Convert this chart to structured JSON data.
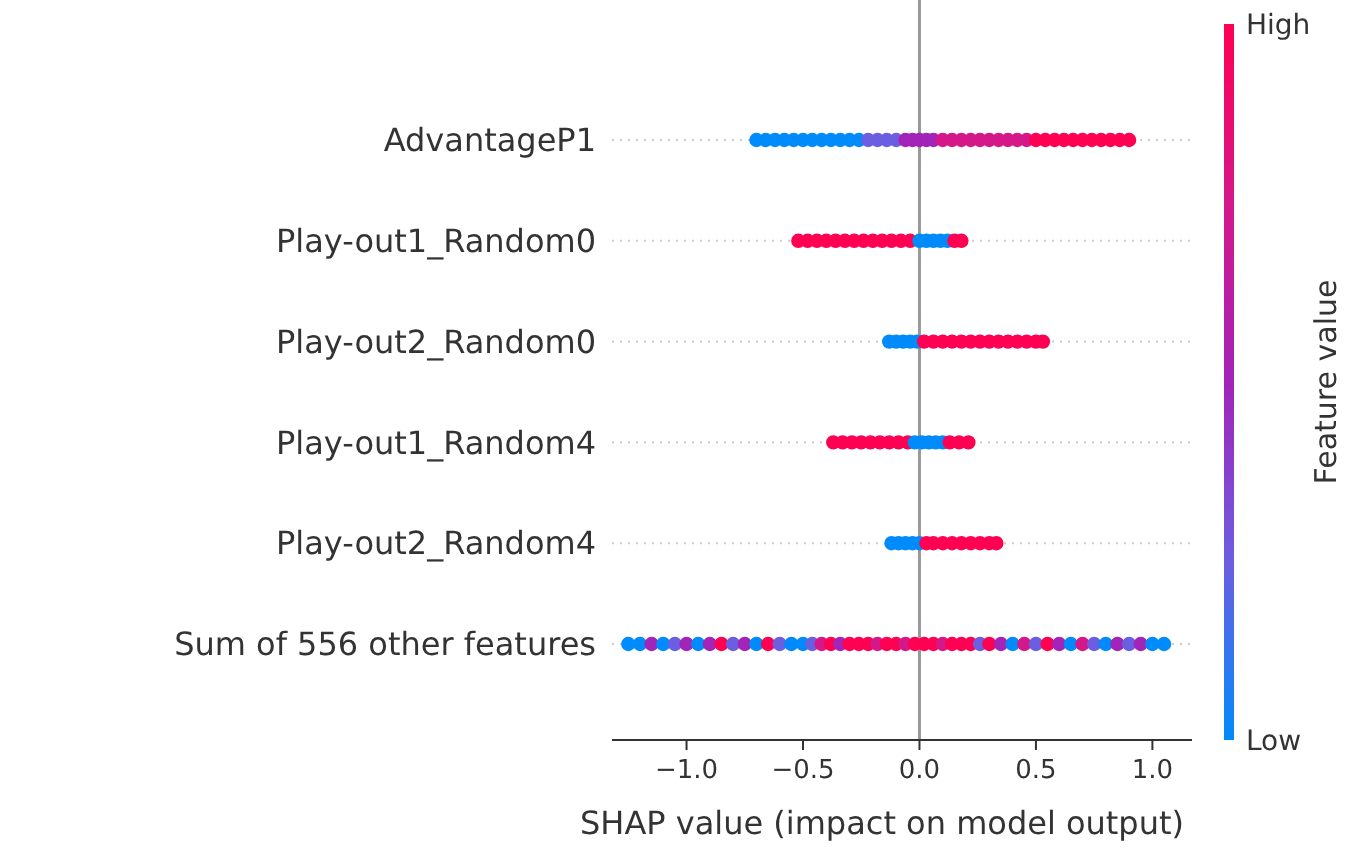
{
  "chart_data": {
    "type": "scatter",
    "orientation": "horizontal",
    "xlabel": "SHAP value (impact on model output)",
    "clabel": "Feature value",
    "categories": [
      "AdvantageP1",
      "Play-out1_Random0",
      "Play-out2_Random0",
      "Play-out1_Random4",
      "Play-out2_Random4",
      "Sum of 556 other features"
    ],
    "xlim": [
      -1.32,
      1.17
    ],
    "xticks": [
      {
        "value": -1,
        "label": "−1.0"
      },
      {
        "value": -0.5,
        "label": "−0.5"
      },
      {
        "value": 0,
        "label": "0.0"
      },
      {
        "value": 0.5,
        "label": "0.5"
      },
      {
        "value": 1,
        "label": "1.0"
      }
    ],
    "clim": [
      0,
      1
    ],
    "cticks": [
      {
        "value": 0,
        "label": "Low"
      },
      {
        "value": 1,
        "label": "High"
      }
    ],
    "grid": "y",
    "ref_lines": [
      {
        "axis": "x",
        "value": 0,
        "color": "#999999"
      }
    ],
    "series": [
      {
        "x": [
          "AdvantageP1",
          "AdvantageP1",
          "AdvantageP1",
          "AdvantageP1",
          "AdvantageP1",
          "AdvantageP1",
          "AdvantageP1",
          "AdvantageP1",
          "AdvantageP1",
          "AdvantageP1",
          "AdvantageP1",
          "AdvantageP1",
          "AdvantageP1",
          "AdvantageP1",
          "AdvantageP1",
          "AdvantageP1",
          "AdvantageP1",
          "AdvantageP1",
          "AdvantageP1",
          "AdvantageP1",
          "AdvantageP1",
          "AdvantageP1",
          "AdvantageP1",
          "AdvantageP1",
          "AdvantageP1",
          "AdvantageP1",
          "AdvantageP1",
          "AdvantageP1",
          "AdvantageP1",
          "AdvantageP1",
          "AdvantageP1",
          "AdvantageP1",
          "AdvantageP1",
          "AdvantageP1",
          "AdvantageP1",
          "AdvantageP1",
          "AdvantageP1",
          "AdvantageP1",
          "AdvantageP1",
          "AdvantageP1",
          "AdvantageP1",
          "AdvantageP1"
        ],
        "values": [
          -0.7,
          -0.66,
          -0.62,
          -0.58,
          -0.54,
          -0.5,
          -0.46,
          -0.42,
          -0.38,
          -0.34,
          -0.3,
          -0.26,
          -0.22,
          -0.18,
          -0.14,
          -0.1,
          -0.06,
          -0.03,
          0,
          0.03,
          0.06,
          0.1,
          0.14,
          0.18,
          0.22,
          0.26,
          0.3,
          0.34,
          0.38,
          0.42,
          0.46,
          0.5,
          0.54,
          0.58,
          0.62,
          0.66,
          0.7,
          0.74,
          0.78,
          0.82,
          0.86,
          0.9
        ],
        "cvalues": [
          0,
          0,
          0,
          0,
          0,
          0,
          0,
          0,
          0,
          0,
          0,
          0,
          0.25,
          0.25,
          0.25,
          0.25,
          0.5,
          0.5,
          0.5,
          0.5,
          0.5,
          0.75,
          0.75,
          0.75,
          0.75,
          0.75,
          0.75,
          0.75,
          0.75,
          0.75,
          0.75,
          1,
          1,
          1,
          1,
          1,
          1,
          1,
          1,
          1,
          1,
          1
        ],
        "colors": [
          "#008bfb",
          "#008bfb",
          "#008bfb",
          "#008bfb",
          "#008bfb",
          "#008bfb",
          "#008bfb",
          "#008bfb",
          "#008bfb",
          "#008bfb",
          "#008bfb",
          "#008bfb",
          "#6c5ee0",
          "#6c5ee0",
          "#6c5ee0",
          "#6c5ee0",
          "#a224b8",
          "#a224b8",
          "#a224b8",
          "#a224b8",
          "#a224b8",
          "#d4188a",
          "#d4188a",
          "#d4188a",
          "#d4188a",
          "#d4188a",
          "#d4188a",
          "#d4188a",
          "#d4188a",
          "#d4188a",
          "#d4188a",
          "#ff0052",
          "#ff0052",
          "#ff0052",
          "#ff0052",
          "#ff0052",
          "#ff0052",
          "#ff0052",
          "#ff0052",
          "#ff0052",
          "#ff0052",
          "#ff0052"
        ]
      },
      {
        "x": [
          "Play-out1_Random0",
          "Play-out1_Random0",
          "Play-out1_Random0",
          "Play-out1_Random0",
          "Play-out1_Random0",
          "Play-out1_Random0",
          "Play-out1_Random0",
          "Play-out1_Random0",
          "Play-out1_Random0",
          "Play-out1_Random0",
          "Play-out1_Random0",
          "Play-out1_Random0",
          "Play-out1_Random0",
          "Play-out1_Random0",
          "Play-out1_Random0",
          "Play-out1_Random0",
          "Play-out1_Random0",
          "Play-out1_Random0",
          "Play-out1_Random0",
          "Play-out1_Random0"
        ],
        "values": [
          -0.52,
          -0.48,
          -0.44,
          -0.4,
          -0.36,
          -0.32,
          -0.28,
          -0.24,
          -0.2,
          -0.16,
          -0.12,
          -0.08,
          -0.04,
          0,
          0.03,
          0.06,
          0.09,
          0.12,
          0.15,
          0.18
        ],
        "cvalues": [
          1,
          1,
          1,
          1,
          1,
          1,
          1,
          1,
          1,
          1,
          1,
          1,
          1,
          0,
          0,
          0,
          0,
          0,
          1,
          1
        ],
        "colors": [
          "#ff0052",
          "#ff0052",
          "#ff0052",
          "#ff0052",
          "#ff0052",
          "#ff0052",
          "#ff0052",
          "#ff0052",
          "#ff0052",
          "#ff0052",
          "#ff0052",
          "#ff0052",
          "#ff0052",
          "#008bfb",
          "#008bfb",
          "#008bfb",
          "#008bfb",
          "#008bfb",
          "#ff0052",
          "#ff0052"
        ]
      },
      {
        "x": [
          "Play-out2_Random0",
          "Play-out2_Random0",
          "Play-out2_Random0",
          "Play-out2_Random0",
          "Play-out2_Random0",
          "Play-out2_Random0",
          "Play-out2_Random0",
          "Play-out2_Random0",
          "Play-out2_Random0",
          "Play-out2_Random0",
          "Play-out2_Random0",
          "Play-out2_Random0",
          "Play-out2_Random0",
          "Play-out2_Random0",
          "Play-out2_Random0",
          "Play-out2_Random0",
          "Play-out2_Random0",
          "Play-out2_Random0",
          "Play-out2_Random0"
        ],
        "values": [
          -0.13,
          -0.1,
          -0.07,
          -0.04,
          -0.01,
          0.02,
          0.06,
          0.1,
          0.14,
          0.18,
          0.22,
          0.26,
          0.3,
          0.34,
          0.38,
          0.42,
          0.46,
          0.5,
          0.53
        ],
        "cvalues": [
          0,
          0,
          0,
          0,
          0,
          1,
          1,
          1,
          1,
          1,
          1,
          1,
          1,
          1,
          1,
          1,
          1,
          1,
          1
        ],
        "colors": [
          "#008bfb",
          "#008bfb",
          "#008bfb",
          "#008bfb",
          "#008bfb",
          "#ff0052",
          "#ff0052",
          "#ff0052",
          "#ff0052",
          "#ff0052",
          "#ff0052",
          "#ff0052",
          "#ff0052",
          "#ff0052",
          "#ff0052",
          "#ff0052",
          "#ff0052",
          "#ff0052",
          "#ff0052"
        ]
      },
      {
        "x": [
          "Play-out1_Random4",
          "Play-out1_Random4",
          "Play-out1_Random4",
          "Play-out1_Random4",
          "Play-out1_Random4",
          "Play-out1_Random4",
          "Play-out1_Random4",
          "Play-out1_Random4",
          "Play-out1_Random4",
          "Play-out1_Random4",
          "Play-out1_Random4",
          "Play-out1_Random4",
          "Play-out1_Random4",
          "Play-out1_Random4",
          "Play-out1_Random4",
          "Play-out1_Random4",
          "Play-out1_Random4"
        ],
        "values": [
          -0.37,
          -0.33,
          -0.29,
          -0.25,
          -0.21,
          -0.17,
          -0.13,
          -0.09,
          -0.05,
          -0.02,
          0.01,
          0.04,
          0.07,
          0.1,
          0.13,
          0.17,
          0.21
        ],
        "cvalues": [
          1,
          1,
          1,
          1,
          1,
          1,
          1,
          1,
          1,
          0,
          0,
          0,
          0,
          0,
          1,
          1,
          1
        ],
        "colors": [
          "#ff0052",
          "#ff0052",
          "#ff0052",
          "#ff0052",
          "#ff0052",
          "#ff0052",
          "#ff0052",
          "#ff0052",
          "#ff0052",
          "#008bfb",
          "#008bfb",
          "#008bfb",
          "#008bfb",
          "#008bfb",
          "#ff0052",
          "#ff0052",
          "#ff0052"
        ]
      },
      {
        "x": [
          "Play-out2_Random4",
          "Play-out2_Random4",
          "Play-out2_Random4",
          "Play-out2_Random4",
          "Play-out2_Random4",
          "Play-out2_Random4",
          "Play-out2_Random4",
          "Play-out2_Random4",
          "Play-out2_Random4",
          "Play-out2_Random4",
          "Play-out2_Random4",
          "Play-out2_Random4",
          "Play-out2_Random4",
          "Play-out2_Random4"
        ],
        "values": [
          -0.12,
          -0.09,
          -0.06,
          -0.03,
          0,
          0.03,
          0.06,
          0.1,
          0.14,
          0.18,
          0.22,
          0.26,
          0.3,
          0.33
        ],
        "cvalues": [
          0,
          0,
          0,
          0,
          0,
          1,
          1,
          1,
          1,
          1,
          1,
          1,
          1,
          1
        ],
        "colors": [
          "#008bfb",
          "#008bfb",
          "#008bfb",
          "#008bfb",
          "#008bfb",
          "#ff0052",
          "#ff0052",
          "#ff0052",
          "#ff0052",
          "#ff0052",
          "#ff0052",
          "#ff0052",
          "#ff0052",
          "#ff0052"
        ]
      },
      {
        "x": [
          "Sum of 556 other features",
          "Sum of 556 other features",
          "Sum of 556 other features",
          "Sum of 556 other features",
          "Sum of 556 other features",
          "Sum of 556 other features",
          "Sum of 556 other features",
          "Sum of 556 other features",
          "Sum of 556 other features",
          "Sum of 556 other features",
          "Sum of 556 other features",
          "Sum of 556 other features",
          "Sum of 556 other features",
          "Sum of 556 other features",
          "Sum of 556 other features",
          "Sum of 556 other features",
          "Sum of 556 other features",
          "Sum of 556 other features",
          "Sum of 556 other features",
          "Sum of 556 other features",
          "Sum of 556 other features",
          "Sum of 556 other features",
          "Sum of 556 other features",
          "Sum of 556 other features",
          "Sum of 556 other features",
          "Sum of 556 other features",
          "Sum of 556 other features",
          "Sum of 556 other features",
          "Sum of 556 other features",
          "Sum of 556 other features",
          "Sum of 556 other features",
          "Sum of 556 other features",
          "Sum of 556 other features",
          "Sum of 556 other features",
          "Sum of 556 other features",
          "Sum of 556 other features",
          "Sum of 556 other features",
          "Sum of 556 other features",
          "Sum of 556 other features",
          "Sum of 556 other features",
          "Sum of 556 other features",
          "Sum of 556 other features",
          "Sum of 556 other features",
          "Sum of 556 other features",
          "Sum of 556 other features",
          "Sum of 556 other features",
          "Sum of 556 other features",
          "Sum of 556 other features",
          "Sum of 556 other features",
          "Sum of 556 other features",
          "Sum of 556 other features"
        ],
        "values": [
          -1.25,
          -1.2,
          -1.15,
          -1.1,
          -1.05,
          -1.0,
          -0.95,
          -0.9,
          -0.85,
          -0.8,
          -0.75,
          -0.7,
          -0.65,
          -0.6,
          -0.55,
          -0.5,
          -0.46,
          -0.42,
          -0.38,
          -0.34,
          -0.3,
          -0.26,
          -0.22,
          -0.18,
          -0.14,
          -0.1,
          -0.06,
          -0.02,
          0.02,
          0.06,
          0.1,
          0.14,
          0.18,
          0.22,
          0.26,
          0.3,
          0.35,
          0.4,
          0.45,
          0.5,
          0.55,
          0.6,
          0.65,
          0.7,
          0.75,
          0.8,
          0.85,
          0.9,
          0.95,
          1.0,
          1.05
        ],
        "cvalues": [
          0,
          0,
          0.5,
          0,
          0.25,
          0.5,
          0,
          0.5,
          1,
          0.25,
          0.5,
          0,
          1,
          0.25,
          0,
          0,
          0.25,
          0.75,
          1,
          0.5,
          1,
          1,
          1,
          0.75,
          1,
          1,
          0.75,
          1,
          1,
          1,
          0.75,
          1,
          1,
          1,
          0.25,
          1,
          0.5,
          0,
          0.75,
          0.25,
          1,
          0.5,
          0,
          0.75,
          0.25,
          0,
          0.5,
          0.25,
          0.5,
          0,
          0
        ],
        "colors": [
          "#008bfb",
          "#008bfb",
          "#a224b8",
          "#008bfb",
          "#6c5ee0",
          "#a224b8",
          "#008bfb",
          "#a224b8",
          "#ff0052",
          "#6c5ee0",
          "#a224b8",
          "#008bfb",
          "#ff0052",
          "#6c5ee0",
          "#008bfb",
          "#008bfb",
          "#6c5ee0",
          "#d4188a",
          "#ff0052",
          "#a224b8",
          "#ff0052",
          "#ff0052",
          "#ff0052",
          "#d4188a",
          "#ff0052",
          "#ff0052",
          "#d4188a",
          "#ff0052",
          "#ff0052",
          "#ff0052",
          "#d4188a",
          "#ff0052",
          "#ff0052",
          "#ff0052",
          "#6c5ee0",
          "#ff0052",
          "#a224b8",
          "#008bfb",
          "#d4188a",
          "#6c5ee0",
          "#ff0052",
          "#a224b8",
          "#008bfb",
          "#d4188a",
          "#6c5ee0",
          "#008bfb",
          "#a224b8",
          "#6c5ee0",
          "#a224b8",
          "#008bfb",
          "#008bfb"
        ]
      }
    ]
  }
}
